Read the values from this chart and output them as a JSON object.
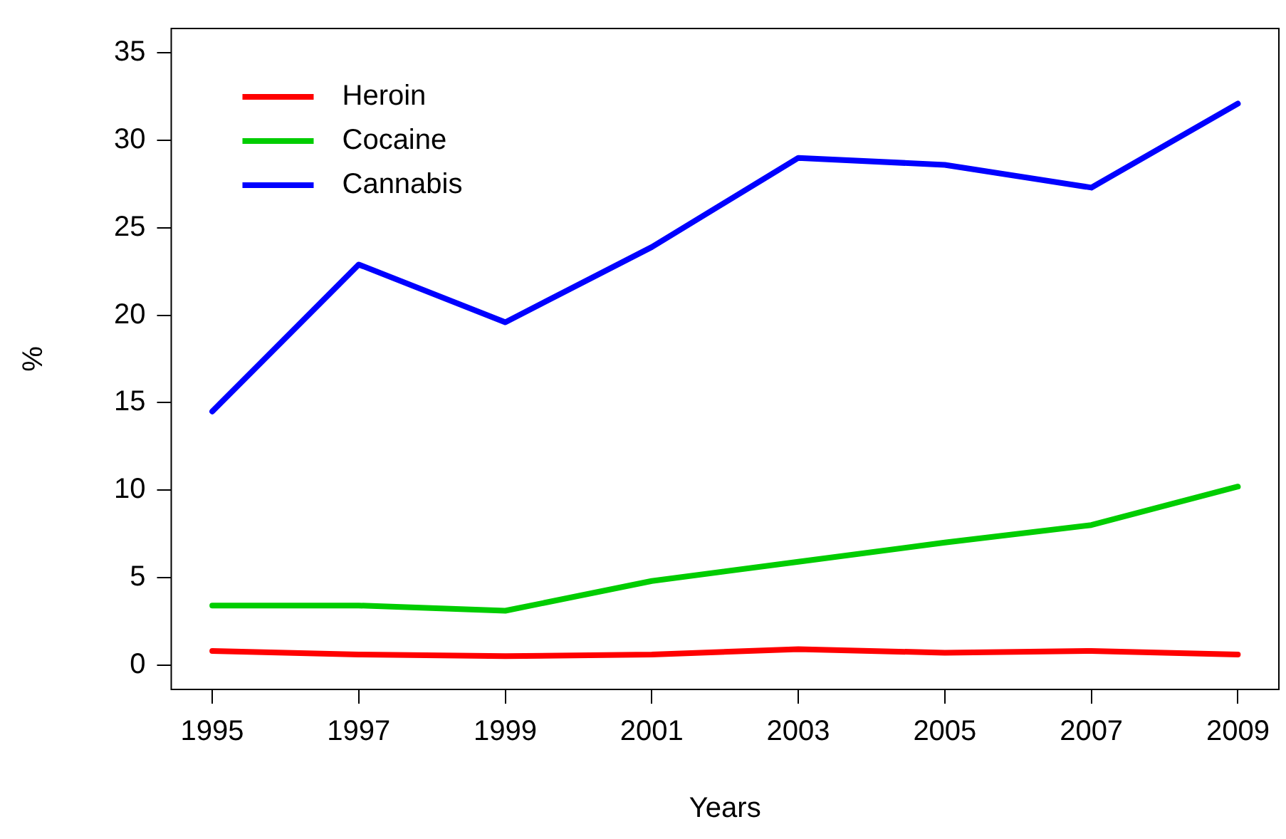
{
  "chart_data": {
    "type": "line",
    "xlabel": "Years",
    "ylabel": "%",
    "x": [
      1995,
      1997,
      1999,
      2001,
      2003,
      2005,
      2007,
      2009
    ],
    "series": [
      {
        "name": "Heroin",
        "color": "#ff0000",
        "values": [
          0.8,
          0.6,
          0.5,
          0.6,
          0.9,
          0.7,
          0.8,
          0.6
        ]
      },
      {
        "name": "Cocaine",
        "color": "#00cd00",
        "values": [
          3.4,
          3.4,
          3.1,
          4.8,
          5.9,
          7.0,
          8.0,
          10.2
        ]
      },
      {
        "name": "Cannabis",
        "color": "#0000ff",
        "values": [
          14.5,
          22.9,
          19.6,
          23.9,
          29.0,
          28.6,
          27.3,
          32.1
        ]
      }
    ],
    "xlim": [
      1994.44,
      2009.56
    ],
    "xticks": [
      1995,
      1997,
      1999,
      2001,
      2003,
      2005,
      2007,
      2009
    ],
    "ylim": [
      -1.4,
      36.4
    ],
    "yticks": [
      0,
      5,
      10,
      15,
      20,
      25,
      30,
      35
    ],
    "grid": false,
    "legend": "top left",
    "marker": "none",
    "line_style": "solid"
  }
}
